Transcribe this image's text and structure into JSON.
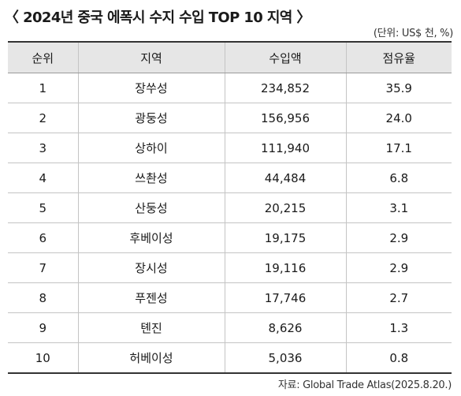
{
  "title": "〈 2024년 중국 에폭시 수지 수입 TOP 10 지역 〉",
  "unit_note": "(단위: US$ 천, %)",
  "table": {
    "headers": [
      "순위",
      "지역",
      "수입액",
      "점유율"
    ],
    "rows": [
      [
        "1",
        "장쑤성",
        "234,852",
        "35.9"
      ],
      [
        "2",
        "광둥성",
        "156,956",
        "24.0"
      ],
      [
        "3",
        "상하이",
        "111,940",
        "17.1"
      ],
      [
        "4",
        "쓰촨성",
        "44,484",
        "6.8"
      ],
      [
        "5",
        "산둥성",
        "20,215",
        "3.1"
      ],
      [
        "6",
        "후베이성",
        "19,175",
        "2.9"
      ],
      [
        "7",
        "장시성",
        "19,116",
        "2.9"
      ],
      [
        "8",
        "푸젠성",
        "17,746",
        "2.7"
      ],
      [
        "9",
        "톈진",
        "8,626",
        "1.3"
      ],
      [
        "10",
        "허베이성",
        "5,036",
        "0.8"
      ]
    ]
  },
  "source": "자료: Global Trade Atlas(2025.8.20.)"
}
